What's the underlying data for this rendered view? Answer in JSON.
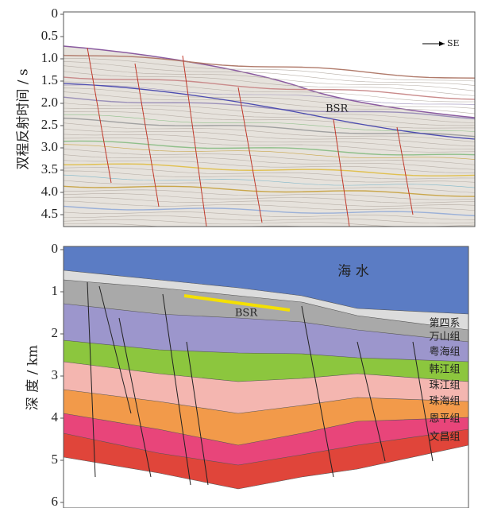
{
  "seismic_profile": {
    "axis_label": "双程反射时间 / s",
    "ticks": [
      0,
      {
        "value": 0.5,
        "label": "0.5"
      },
      {
        "value": 1,
        "label": "1.0"
      },
      {
        "value": 1.5,
        "label": "1.5"
      },
      {
        "value": 2,
        "label": "2.0"
      },
      {
        "value": 2.5,
        "label": "2.5"
      },
      {
        "value": 3,
        "label": "3.0"
      },
      {
        "value": 3.5,
        "label": "3.5"
      },
      {
        "value": 4,
        "label": "4.0"
      },
      {
        "value": 4.5,
        "label": "4.5"
      }
    ],
    "bsr_label": "BSR",
    "direction_label": "SE"
  },
  "geologic_section": {
    "axis_label": "深 度 / km",
    "ticks": [
      0,
      1,
      2,
      3,
      4,
      5,
      6
    ],
    "water_label": "海 水",
    "bsr_label": "BSR",
    "layers": [
      "第四系",
      "万山组",
      "粤海组",
      "韩江组",
      "珠江组",
      "珠海组",
      "恩平组",
      "文昌组"
    ]
  }
}
